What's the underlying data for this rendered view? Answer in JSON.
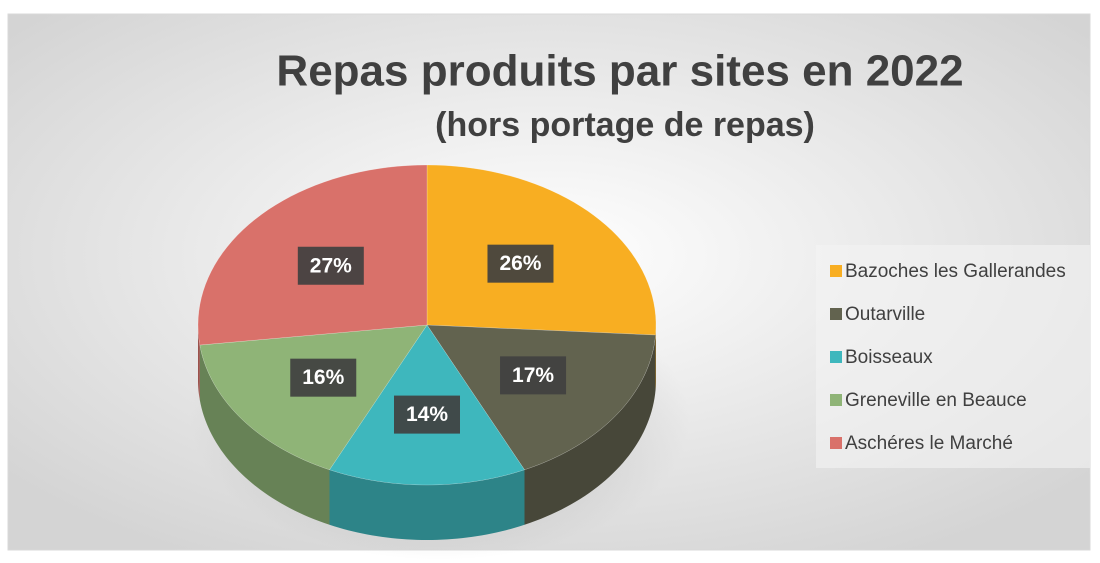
{
  "chart_data": {
    "type": "pie3d",
    "title": "Repas produits par sites en 2022",
    "subtitle": "(hors portage de repas)",
    "categories": [
      "Bazoches les Gallerandes",
      "Outarville",
      "Boisseaux",
      "Greneville en Beauce",
      "Aschéres le Marché"
    ],
    "values": [
      26,
      17,
      14,
      16,
      27
    ],
    "value_labels": [
      "26%",
      "17%",
      "14%",
      "16%",
      "27%"
    ],
    "colors": [
      "#F8AE22",
      "#62634F",
      "#3EB7BD",
      "#8FB477",
      "#D9716A"
    ],
    "legend": "right"
  }
}
